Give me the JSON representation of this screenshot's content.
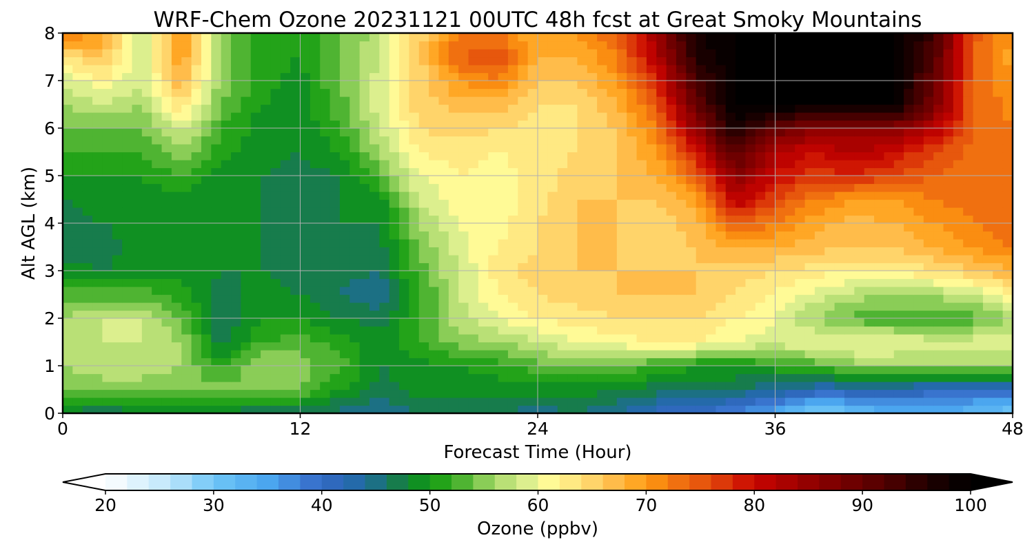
{
  "chart_data": {
    "type": "heatmap",
    "title": "WRF-Chem Ozone  20231121 00UTC 48h fcst at Great Smoky Mountains",
    "xlabel": "Forecast Time (Hour)",
    "ylabel": "Alt AGL (km)",
    "xlim": [
      0,
      48
    ],
    "ylim": [
      0,
      8
    ],
    "x_ticks": [
      0,
      12,
      24,
      36,
      48
    ],
    "y_ticks": [
      0,
      1,
      2,
      3,
      4,
      5,
      6,
      7,
      8
    ],
    "grid": true,
    "x": [
      0,
      2,
      4,
      6,
      8,
      10,
      12,
      14,
      16,
      18,
      20,
      22,
      24,
      26,
      28,
      30,
      32,
      34,
      36,
      38,
      40,
      42,
      44,
      46,
      48
    ],
    "y": [
      0,
      0.5,
      1,
      1.5,
      2,
      2.5,
      3,
      3.5,
      4,
      4.5,
      5,
      5.5,
      6,
      6.5,
      7,
      7.5,
      8
    ],
    "z_rows_by_altitude": [
      [
        47,
        46,
        47,
        47,
        47,
        46,
        46,
        45,
        44,
        46,
        47,
        46,
        45,
        46,
        44,
        41,
        40,
        37,
        34,
        28,
        31,
        34,
        34,
        32,
        30
      ],
      [
        55,
        55,
        55,
        55,
        55,
        55,
        54,
        50,
        47,
        49,
        49,
        49,
        49,
        49,
        48,
        47,
        47,
        46,
        44,
        42,
        42,
        42,
        41,
        40,
        40
      ],
      [
        56,
        57,
        57,
        56,
        51,
        56,
        55,
        53,
        48,
        49,
        50,
        51,
        53,
        55,
        54,
        52,
        50,
        50,
        51,
        53,
        55,
        56,
        56,
        56,
        56
      ],
      [
        57,
        58,
        58,
        56,
        47,
        52,
        53,
        51,
        49,
        52,
        55,
        56,
        58,
        60,
        61,
        62,
        62,
        60,
        59,
        60,
        61,
        60,
        59,
        59,
        59
      ],
      [
        56,
        58,
        58,
        54,
        46,
        50,
        50,
        48,
        47,
        52,
        57,
        60,
        62,
        63,
        64,
        64,
        64,
        62,
        60,
        56,
        53,
        52,
        52,
        53,
        56
      ],
      [
        53,
        53,
        53,
        51,
        47,
        49,
        48,
        46,
        44,
        51,
        58,
        62,
        64,
        65,
        66,
        66,
        66,
        64,
        62,
        59,
        57,
        56,
        56,
        58,
        62
      ],
      [
        49,
        48,
        49,
        49,
        48,
        48,
        47,
        47,
        46,
        53,
        58,
        63,
        65,
        66,
        66,
        66,
        66,
        65,
        64,
        63,
        62,
        62,
        64,
        66,
        68
      ],
      [
        46,
        47,
        49,
        49,
        48,
        48,
        47,
        48,
        47,
        54,
        59,
        62,
        64,
        66,
        66,
        65,
        66,
        68,
        68,
        67,
        66,
        66,
        68,
        70,
        72
      ],
      [
        47,
        48,
        49,
        49,
        48,
        48,
        47,
        48,
        48,
        56,
        60,
        61,
        64,
        66,
        66,
        65,
        67,
        75,
        72,
        69,
        67,
        68,
        70,
        72,
        74
      ],
      [
        48,
        49,
        49,
        49,
        48,
        48,
        47,
        48,
        49,
        58,
        61,
        61,
        63,
        66,
        66,
        66,
        69,
        82,
        76,
        72,
        70,
        70,
        72,
        73,
        74
      ],
      [
        50,
        50,
        50,
        52,
        48,
        48,
        47,
        48,
        53,
        60,
        62,
        61,
        63,
        65,
        66,
        68,
        74,
        86,
        80,
        77,
        78,
        76,
        74,
        73,
        72
      ],
      [
        52,
        52,
        52,
        56,
        51,
        49,
        48,
        50,
        56,
        62,
        63,
        62,
        63,
        64,
        66,
        70,
        79,
        92,
        82,
        80,
        82,
        80,
        76,
        73,
        72
      ],
      [
        54,
        54,
        54,
        59,
        52,
        49,
        48,
        52,
        58,
        64,
        65,
        64,
        63,
        64,
        66,
        72,
        85,
        98,
        90,
        86,
        86,
        86,
        82,
        74,
        72
      ],
      [
        56,
        58,
        56,
        64,
        54,
        50,
        49,
        53,
        59,
        65,
        67,
        67,
        64,
        64,
        68,
        75,
        90,
        100,
        100,
        100,
        100,
        100,
        88,
        74,
        71
      ],
      [
        58,
        62,
        58,
        68,
        55,
        51,
        49,
        54,
        59,
        65,
        70,
        72,
        66,
        66,
        70,
        78,
        93,
        100,
        100,
        100,
        100,
        100,
        90,
        74,
        70
      ],
      [
        64,
        66,
        58,
        70,
        55,
        51,
        50,
        54,
        58,
        65,
        74,
        76,
        68,
        68,
        72,
        82,
        96,
        100,
        100,
        100,
        100,
        100,
        92,
        74,
        69
      ],
      [
        72,
        70,
        57,
        71,
        55,
        51,
        50,
        54,
        57,
        65,
        72,
        72,
        68,
        70,
        74,
        84,
        98,
        100,
        100,
        100,
        100,
        100,
        94,
        75,
        70
      ]
    ],
    "colorbar": {
      "label": "Ozone  (ppbv)",
      "vmin": 20,
      "vmax": 100,
      "step": 2,
      "ticks": [
        20,
        30,
        40,
        50,
        60,
        70,
        80,
        90,
        100
      ],
      "extend": "both",
      "placement": "bottom",
      "color_stops": [
        [
          20,
          "#ffffff"
        ],
        [
          26,
          "#bde6fb"
        ],
        [
          30,
          "#6fc6f7"
        ],
        [
          35,
          "#4ba6ef"
        ],
        [
          40,
          "#3468c6"
        ],
        [
          44,
          "#1f6aa0"
        ],
        [
          47,
          "#177c4c"
        ],
        [
          50,
          "#0d9a0d"
        ],
        [
          53,
          "#4fb432"
        ],
        [
          56,
          "#a8d96a"
        ],
        [
          59,
          "#dcef8e"
        ],
        [
          61,
          "#fffa96"
        ],
        [
          64,
          "#ffe07a"
        ],
        [
          67,
          "#ffbc4a"
        ],
        [
          70,
          "#ff9c12"
        ],
        [
          73,
          "#f07010"
        ],
        [
          76,
          "#e24a0c"
        ],
        [
          80,
          "#c80400"
        ],
        [
          86,
          "#8a0000"
        ],
        [
          92,
          "#520000"
        ],
        [
          96,
          "#200000"
        ],
        [
          100,
          "#000000"
        ]
      ]
    }
  }
}
